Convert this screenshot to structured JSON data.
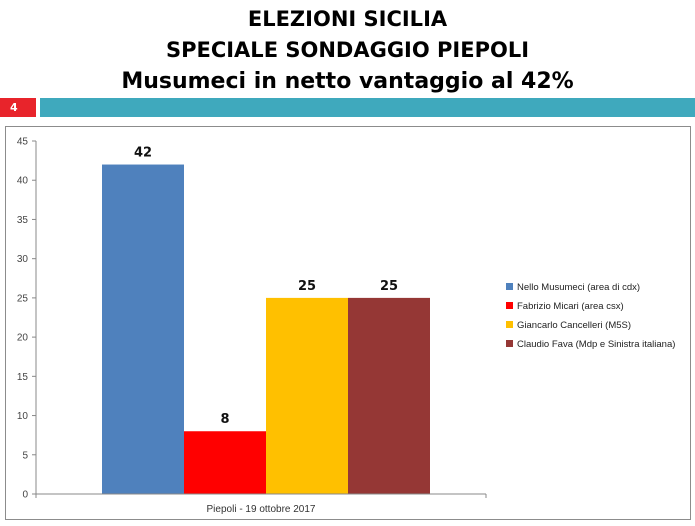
{
  "header": {
    "line1": "ELEZIONI SICILIA",
    "line2": "SPECIALE SONDAGGIO PIEPOLI",
    "line3": "Musumeci in netto vantaggio al 42%"
  },
  "slide": {
    "number": "4",
    "number_color": "#e8242b",
    "bar_color": "#3fa9bd"
  },
  "chart_data": {
    "type": "bar",
    "categories": [
      "Piepoli - 19 ottobre 2017"
    ],
    "xlabel": "Piepoli - 19 ottobre 2017",
    "ylabel": "",
    "ylim": [
      0,
      45
    ],
    "yticks": [
      0,
      5,
      10,
      15,
      20,
      25,
      30,
      35,
      40,
      45
    ],
    "grid": false,
    "legend_position": "right",
    "series": [
      {
        "name": "Nello Musumeci (area di cdx)",
        "values": [
          42
        ],
        "color": "#4f81bd"
      },
      {
        "name": "Fabrizio Micari (area csx)",
        "values": [
          8
        ],
        "color": "#ff0000"
      },
      {
        "name": "Giancarlo Cancelleri (M5S)",
        "values": [
          25
        ],
        "color": "#ffc000"
      },
      {
        "name": "Claudio Fava (Mdp e Sinistra italiana)",
        "values": [
          25
        ],
        "color": "#953735"
      }
    ]
  }
}
